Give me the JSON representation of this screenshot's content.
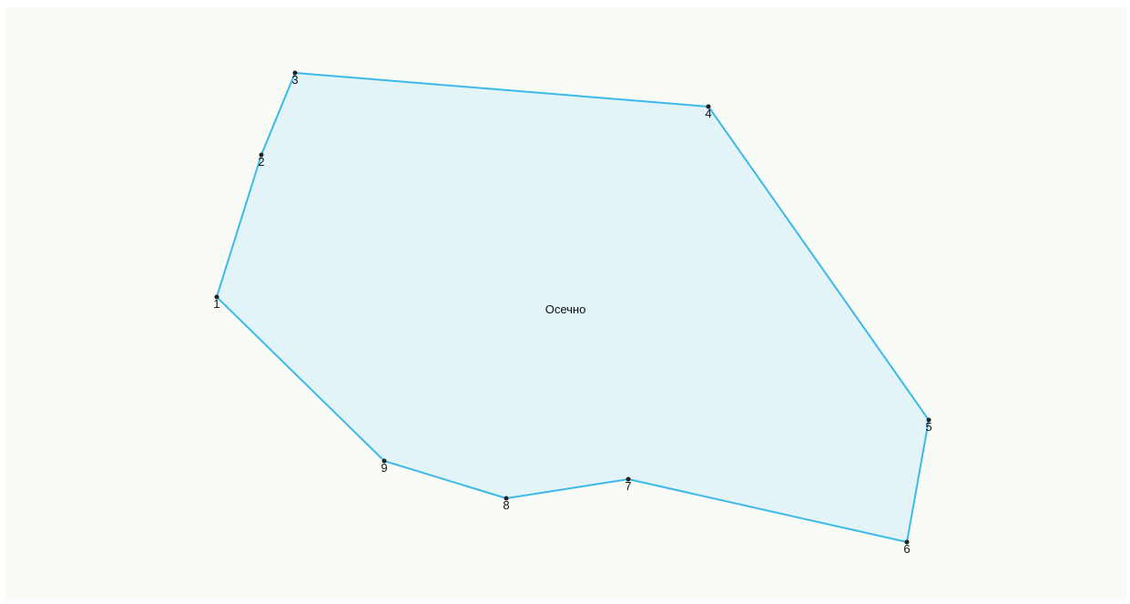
{
  "label": "Осечно",
  "vertices": [
    {
      "label": "1"
    },
    {
      "label": "2"
    },
    {
      "label": "3"
    },
    {
      "label": "4"
    },
    {
      "label": "5"
    },
    {
      "label": "6"
    },
    {
      "label": "7"
    },
    {
      "label": "8"
    },
    {
      "label": "9"
    }
  ]
}
